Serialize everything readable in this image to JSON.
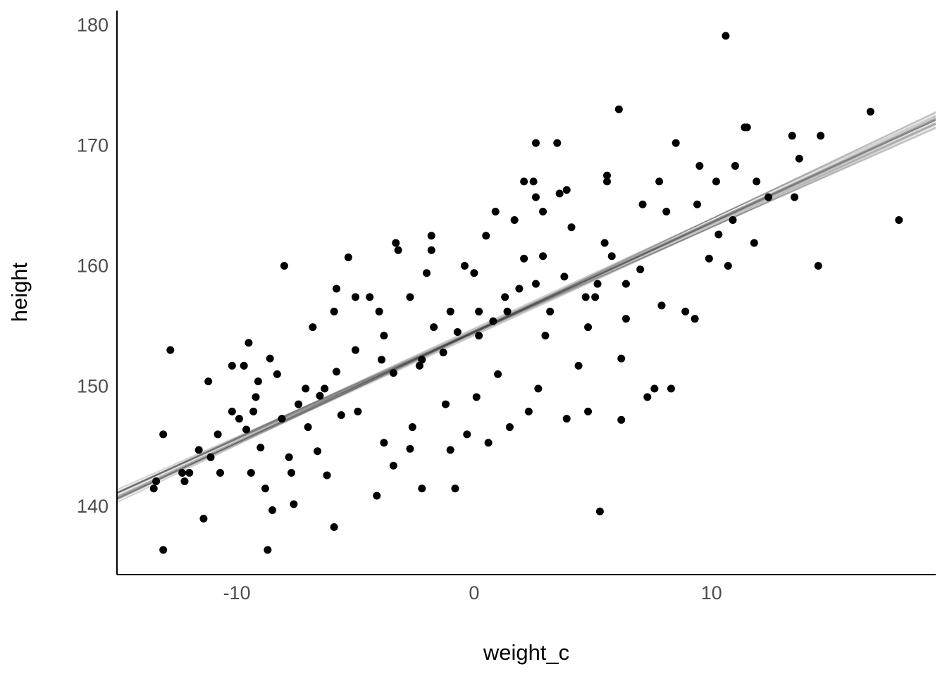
{
  "chart_data": {
    "type": "scatter",
    "x_label": "weight_c",
    "y_label": "height",
    "xlim": [
      -15.05,
      19.45
    ],
    "ylim": [
      134.45,
      181.3
    ],
    "xticks": [
      -10,
      0,
      10
    ],
    "yticks": [
      140,
      150,
      160,
      170,
      180
    ],
    "color": "#000000",
    "line_color": "#000000",
    "x": [
      -13.1,
      -13.5,
      -13.4,
      -13.1,
      -12.8,
      -12.3,
      -12.2,
      -12.0,
      -11.6,
      -11.4,
      -11.2,
      -11.1,
      -10.8,
      -10.7,
      -10.2,
      -10.2,
      -9.9,
      -9.7,
      -9.5,
      -9.6,
      -9.4,
      -9.2,
      -9.1,
      -9.0,
      -8.8,
      -8.7,
      -8.6,
      -8.5,
      -8.3,
      -8.0,
      -8.1,
      -7.8,
      -7.7,
      -7.6,
      -7.4,
      -7.1,
      -6.8,
      -7.0,
      -6.6,
      -6.3,
      -6.2,
      -5.9,
      -5.8,
      -5.8,
      -5.6,
      -5.3,
      -5.0,
      -5.0,
      -4.9,
      -4.4,
      -4.1,
      -4.0,
      -3.8,
      -3.8,
      -3.3,
      -3.4,
      -3.2,
      -2.7,
      -2.7,
      -2.6,
      -2.3,
      -2.2,
      -2.0,
      -1.8,
      -1.8,
      -1.7,
      -1.2,
      -1.0,
      -0.8,
      -1.0,
      -0.4,
      -0.3,
      0.0,
      0.1,
      0.2,
      0.6,
      0.9,
      1.0,
      1.3,
      1.5,
      1.7,
      1.9,
      2.1,
      2.1,
      2.3,
      2.6,
      2.7,
      3.0,
      3.5,
      3.9,
      3.9,
      4.1,
      4.4,
      4.8,
      4.8,
      5.3,
      5.1,
      5.5,
      5.6,
      6.1,
      6.2,
      6.2,
      6.4,
      7.1,
      7.3,
      7.6,
      7.9,
      8.3,
      8.5,
      8.9,
      9.3,
      9.5,
      9.9,
      10.2,
      10.7,
      10.6,
      11.0,
      11.5,
      11.8,
      12.4,
      13.4,
      13.7,
      14.5,
      14.6,
      16.7,
      17.9,
      13.5,
      11.9,
      11.4,
      10.3,
      10.9,
      9.4,
      8.1,
      7.8,
      5.6,
      2.5,
      2.6,
      3.6,
      2.9,
      0.5,
      -5.9,
      -6.5,
      -9.3,
      -3.9,
      -3.4,
      -2.2,
      -1.3,
      -0.7,
      0.2,
      0.8,
      1.4,
      2.6,
      2.9,
      3.8,
      3.2,
      4.7,
      5.2,
      5.8,
      6.4,
      7.0
    ],
    "values": [
      136.5,
      141.6,
      142.2,
      146.1,
      153.1,
      142.9,
      142.2,
      142.9,
      144.8,
      139.1,
      150.5,
      144.2,
      146.1,
      142.9,
      151.8,
      148.0,
      147.4,
      151.8,
      153.7,
      146.5,
      142.9,
      149.2,
      150.5,
      145.0,
      141.6,
      136.5,
      152.4,
      139.8,
      151.1,
      160.1,
      147.4,
      144.2,
      142.9,
      140.3,
      148.6,
      149.9,
      155.0,
      146.7,
      144.7,
      149.9,
      142.7,
      138.4,
      158.2,
      151.3,
      147.7,
      160.8,
      157.5,
      153.1,
      148.0,
      157.5,
      141.0,
      156.3,
      154.3,
      145.4,
      162.0,
      143.5,
      161.4,
      157.5,
      144.9,
      146.7,
      151.8,
      141.6,
      159.5,
      161.4,
      162.6,
      155.0,
      148.6,
      144.8,
      141.6,
      156.3,
      160.1,
      146.1,
      159.5,
      149.2,
      154.3,
      145.4,
      164.6,
      151.1,
      157.5,
      146.7,
      163.9,
      158.2,
      160.7,
      167.1,
      148.0,
      170.3,
      149.9,
      154.3,
      170.3,
      147.4,
      166.4,
      163.3,
      151.8,
      155.0,
      148.0,
      139.7,
      157.5,
      162.0,
      167.6,
      173.1,
      152.4,
      147.3,
      155.7,
      165.2,
      149.2,
      149.9,
      156.8,
      149.9,
      170.3,
      156.3,
      155.7,
      168.4,
      160.7,
      167.1,
      160.1,
      179.2,
      168.4,
      171.6,
      162.0,
      165.8,
      170.9,
      169.0,
      160.1,
      170.9,
      172.9,
      163.9,
      165.8,
      167.1,
      171.6,
      162.7,
      163.9,
      165.2,
      164.6,
      167.1,
      167.1,
      167.1,
      165.8,
      166.1,
      164.6,
      162.6,
      156.3,
      149.3,
      148.0,
      152.3,
      151.2,
      152.3,
      152.9,
      154.6,
      156.3,
      155.5,
      156.3,
      158.6,
      160.9,
      159.2,
      156.3,
      157.5,
      158.6,
      160.9,
      158.6,
      159.8
    ],
    "fit_lines": [
      {
        "intercept": 154.6,
        "slope": 0.905
      },
      {
        "intercept": 154.7,
        "slope": 0.9
      },
      {
        "intercept": 154.5,
        "slope": 0.91
      },
      {
        "intercept": 154.6,
        "slope": 0.89
      },
      {
        "intercept": 154.6,
        "slope": 0.92
      },
      {
        "intercept": 154.8,
        "slope": 0.9
      },
      {
        "intercept": 154.4,
        "slope": 0.9
      },
      {
        "intercept": 154.7,
        "slope": 0.93
      },
      {
        "intercept": 154.5,
        "slope": 0.88
      },
      {
        "intercept": 154.6,
        "slope": 0.91
      },
      {
        "intercept": 154.7,
        "slope": 0.89
      },
      {
        "intercept": 154.5,
        "slope": 0.92
      },
      {
        "intercept": 154.6,
        "slope": 0.87
      },
      {
        "intercept": 154.6,
        "slope": 0.94
      },
      {
        "intercept": 154.9,
        "slope": 0.91
      },
      {
        "intercept": 154.3,
        "slope": 0.9
      }
    ]
  }
}
